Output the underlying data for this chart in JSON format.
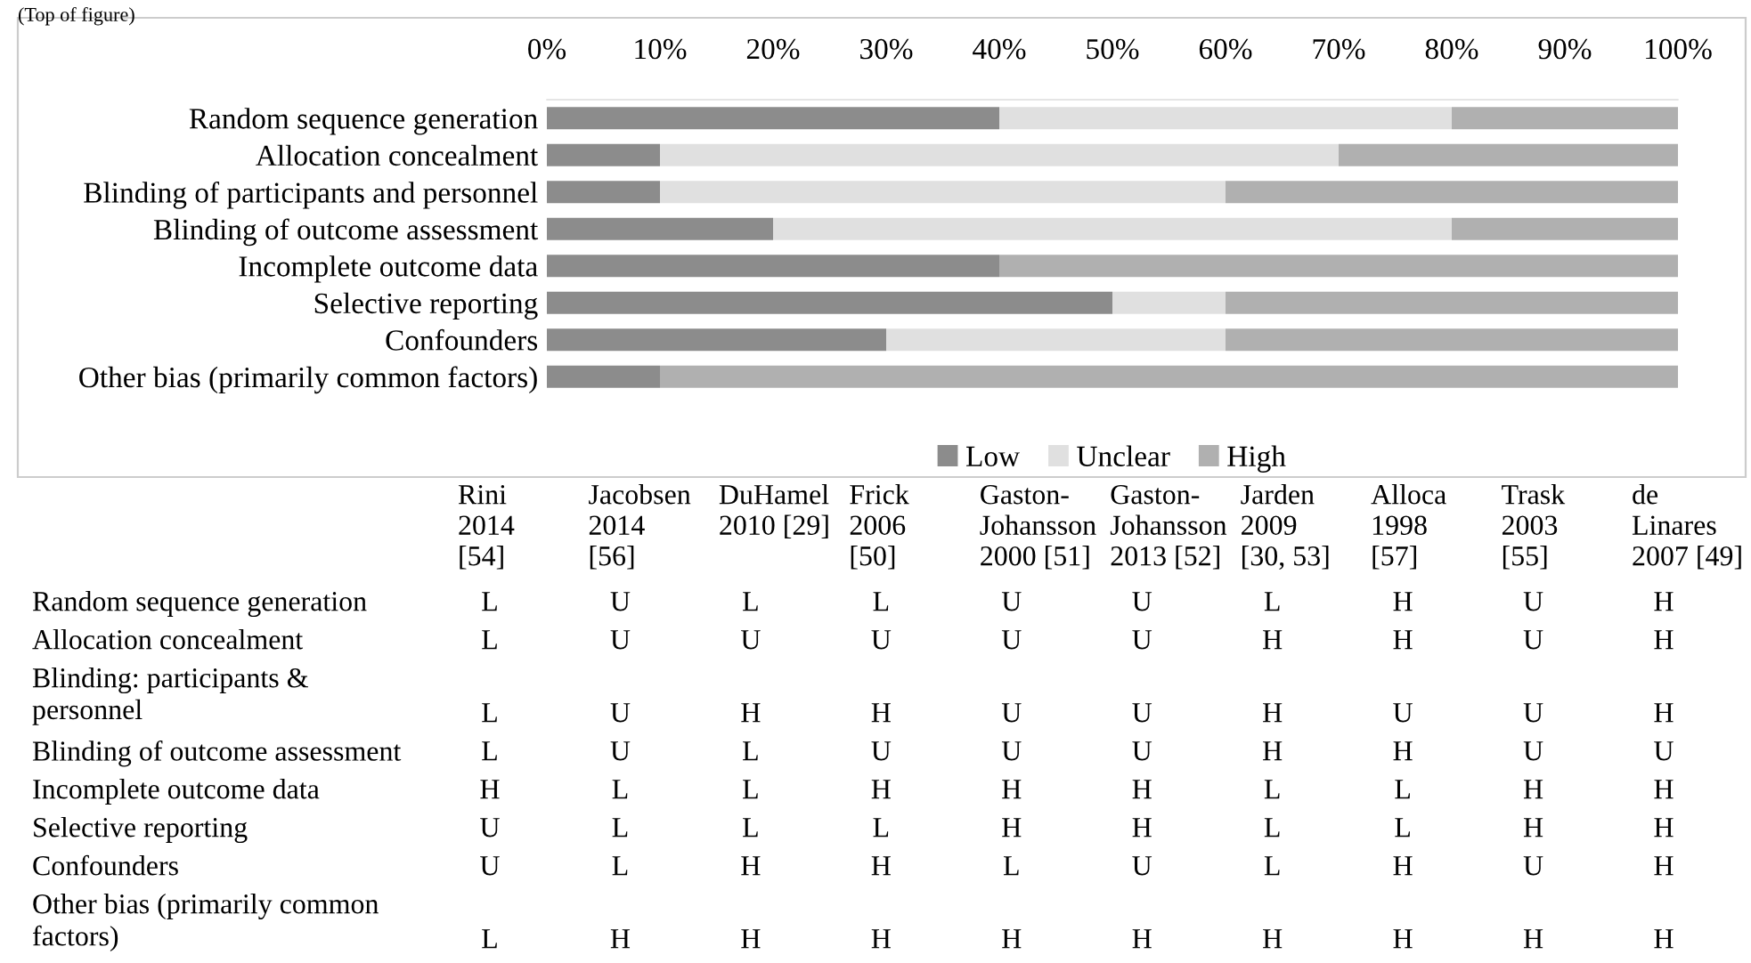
{
  "chart_data": [
    {
      "type": "bar",
      "orientation": "horizontal",
      "stacked": true,
      "categories": [
        "Random sequence generation",
        "Allocation concealment",
        "Blinding of participants and personnel",
        "Blinding of outcome assessment",
        "Incomplete outcome data",
        "Selective reporting",
        "Confounders",
        "Other bias (primarily common factors)"
      ],
      "series": [
        {
          "name": "Low",
          "color": "#8c8c8c",
          "values": [
            40,
            10,
            10,
            20,
            40,
            50,
            30,
            10
          ]
        },
        {
          "name": "Unclear",
          "color": "#e0e0e0",
          "values": [
            40,
            60,
            50,
            60,
            0,
            10,
            30,
            0
          ]
        },
        {
          "name": "High",
          "color": "#b0b0b0",
          "values": [
            20,
            30,
            40,
            20,
            60,
            40,
            40,
            90
          ]
        }
      ],
      "xlim": [
        0,
        100
      ],
      "xticks": [
        {
          "value": 0,
          "label": "0%"
        },
        {
          "value": 10,
          "label": "10%"
        },
        {
          "value": 20,
          "label": "20%"
        },
        {
          "value": 30,
          "label": "30%"
        },
        {
          "value": 40,
          "label": "40%"
        },
        {
          "value": 50,
          "label": "50%"
        },
        {
          "value": 60,
          "label": "60%"
        },
        {
          "value": 70,
          "label": "70%"
        },
        {
          "value": 80,
          "label": "80%"
        },
        {
          "value": 90,
          "label": "90%"
        },
        {
          "value": 100,
          "label": "100%"
        }
      ],
      "grid": false,
      "legend": "bottom",
      "annotations": [
        "(Top of figure)"
      ]
    },
    {
      "type": "other",
      "categories": [
        "Rini\n2014\n[54]",
        "Jacobsen\n2014\n[56]",
        "DuHamel\n2010 [29]",
        "Frick\n2006\n[50]",
        "Gaston-\nJohansson\n2000 [51]",
        "Gaston-\nJohansson\n2013 [52]",
        "Jarden\n2009\n[30, 53]",
        "Alloca\n1998\n[57]",
        "Trask\n2003\n[55]",
        "de\nLinares\n2007 [49]"
      ],
      "y_categories": [
        "Random sequence generation",
        "Allocation concealment",
        "Blinding: participants &\npersonnel",
        "Blinding of outcome assessment",
        "Incomplete outcome data",
        "Selective reporting",
        "Confounders",
        "Other bias (primarily common\nfactors)"
      ],
      "cell_labels": [
        [
          "L",
          "U",
          "L",
          "L",
          "U",
          "U",
          "L",
          "H",
          "U",
          "H"
        ],
        [
          "L",
          "U",
          "U",
          "U",
          "U",
          "U",
          "H",
          "H",
          "U",
          "H"
        ],
        [
          "L",
          "U",
          "H",
          "H",
          "U",
          "U",
          "H",
          "U",
          "U",
          "H"
        ],
        [
          "L",
          "U",
          "L",
          "U",
          "U",
          "U",
          "H",
          "H",
          "U",
          "U"
        ],
        [
          "H",
          "L",
          "L",
          "H",
          "H",
          "H",
          "L",
          "L",
          "H",
          "H"
        ],
        [
          "U",
          "L",
          "L",
          "L",
          "H",
          "H",
          "L",
          "L",
          "H",
          "H"
        ],
        [
          "U",
          "L",
          "H",
          "H",
          "L",
          "U",
          "L",
          "H",
          "U",
          "H"
        ],
        [
          "L",
          "H",
          "H",
          "H",
          "H",
          "H",
          "H",
          "H",
          "H",
          "H"
        ]
      ]
    }
  ]
}
